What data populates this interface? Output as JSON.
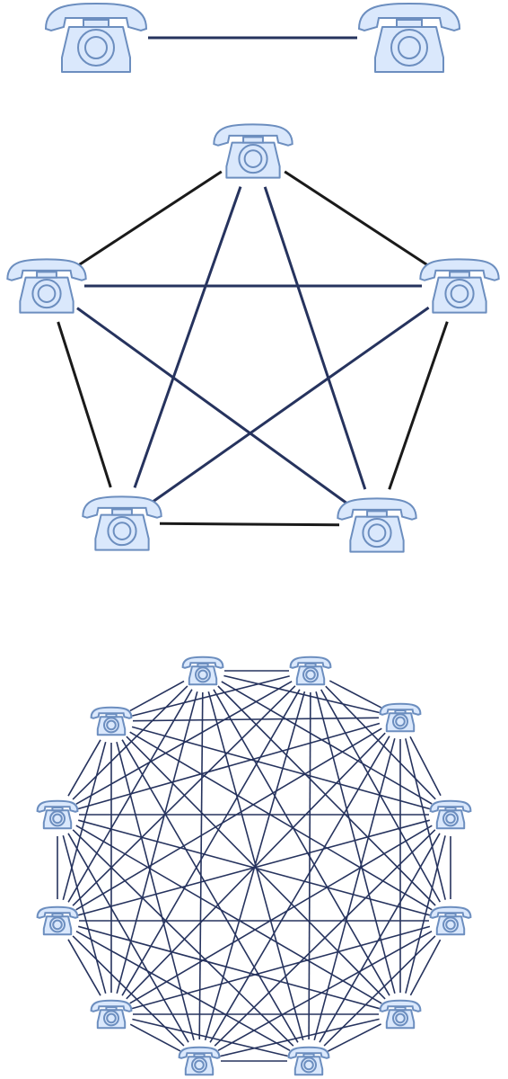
{
  "colors": {
    "background": "#ffffff",
    "phone_fill": "#dae8fc",
    "phone_stroke": "#6c8ebf",
    "link_blue": "#26335e",
    "link_black": "#1a1a1a"
  },
  "icon": "telephone-icon",
  "networks": [
    {
      "name": "two-phone-network",
      "phone_count": 2,
      "topology": "single-link"
    },
    {
      "name": "five-phone-network",
      "phone_count": 5,
      "topology": "full-mesh",
      "outer_ring_color": "link_black",
      "diagonal_color": "link_blue"
    },
    {
      "name": "twelve-phone-network",
      "phone_count": 12,
      "topology": "full-mesh",
      "outer_ring_color": "link_blue",
      "diagonal_color": "link_blue"
    }
  ]
}
